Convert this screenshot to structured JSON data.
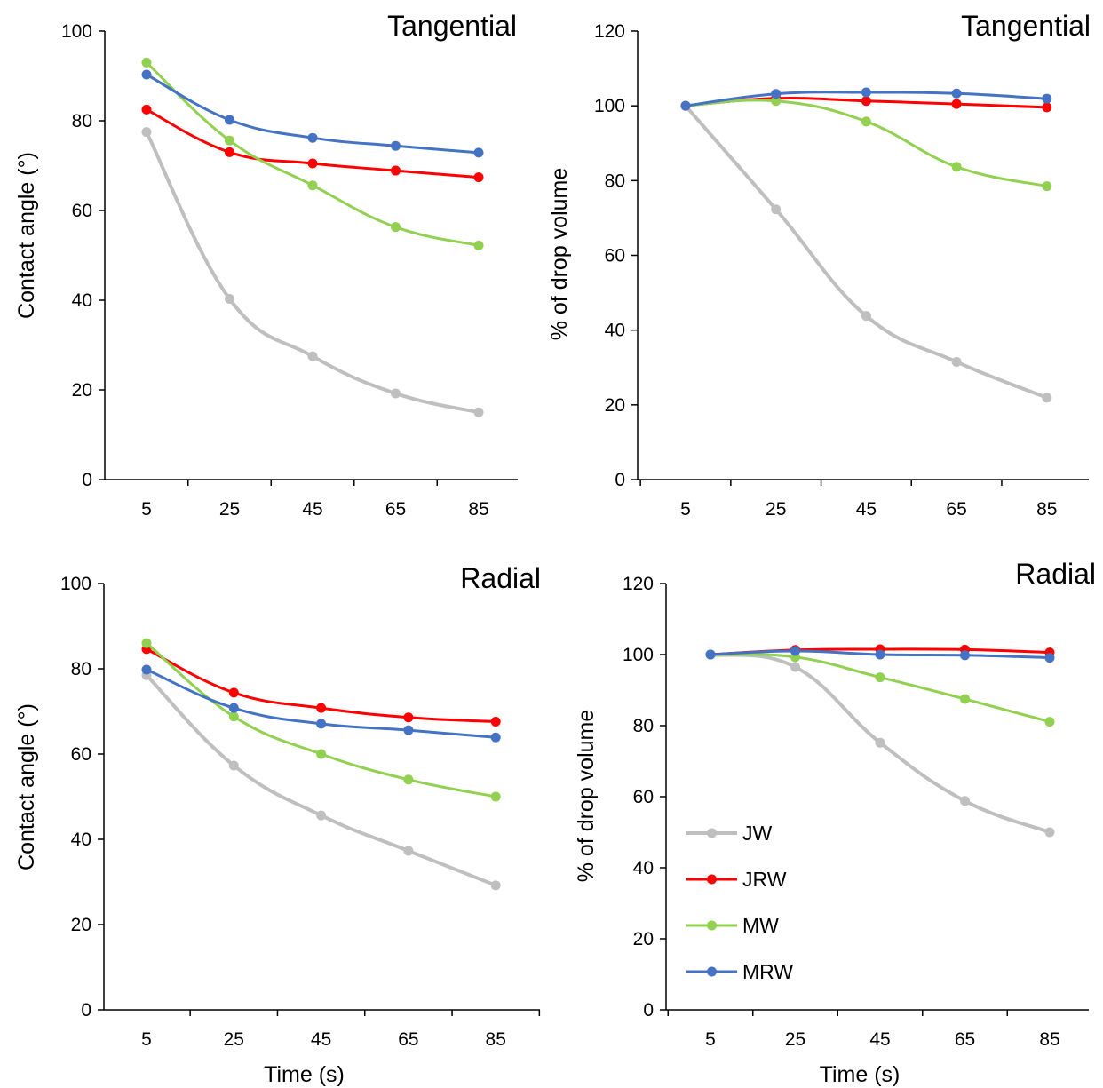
{
  "colors": {
    "JW": "#BFBFBF",
    "JRW": "#FF0000",
    "MW": "#92D050",
    "MRW": "#4472C4"
  },
  "chart_data": [
    {
      "type": "line",
      "title": "Tangential",
      "xlabel": "",
      "ylabel": "Contact angle (°)",
      "categories": [
        "5",
        "25",
        "45",
        "65",
        "85"
      ],
      "ylim": [
        0,
        100
      ],
      "yticks": [
        "0",
        "20",
        "40",
        "60",
        "80",
        "100"
      ],
      "series": [
        {
          "name": "JW",
          "values": [
            77.5,
            40.3,
            27.5,
            19.2,
            15.0
          ]
        },
        {
          "name": "JRW",
          "values": [
            82.5,
            73.0,
            70.5,
            68.9,
            67.4
          ]
        },
        {
          "name": "MW",
          "values": [
            93.0,
            75.6,
            65.6,
            56.3,
            52.2
          ]
        },
        {
          "name": "MRW",
          "values": [
            90.3,
            80.2,
            76.2,
            74.4,
            72.9
          ]
        }
      ]
    },
    {
      "type": "line",
      "title": "Tangential",
      "xlabel": "",
      "ylabel": "% of drop volume",
      "categories": [
        "5",
        "25",
        "45",
        "65",
        "85"
      ],
      "ylim": [
        0,
        120
      ],
      "yticks": [
        "0",
        "20",
        "40",
        "60",
        "80",
        "100",
        "120"
      ],
      "series": [
        {
          "name": "JW",
          "values": [
            100.0,
            72.3,
            43.8,
            31.5,
            21.9
          ]
        },
        {
          "name": "JRW",
          "values": [
            100.0,
            102.0,
            101.3,
            100.5,
            99.6
          ]
        },
        {
          "name": "MW",
          "values": [
            100.0,
            101.3,
            95.8,
            83.7,
            78.5
          ]
        },
        {
          "name": "MRW",
          "values": [
            100.0,
            103.2,
            103.6,
            103.3,
            101.9
          ]
        }
      ]
    },
    {
      "type": "line",
      "title": "Radial",
      "xlabel": "Time (s)",
      "ylabel": "Contact angle (°)",
      "categories": [
        "5",
        "25",
        "45",
        "65",
        "85"
      ],
      "ylim": [
        0,
        100
      ],
      "yticks": [
        "0",
        "20",
        "40",
        "60",
        "80",
        "100"
      ],
      "series": [
        {
          "name": "JW",
          "values": [
            78.5,
            57.3,
            45.6,
            37.3,
            29.2
          ]
        },
        {
          "name": "JRW",
          "values": [
            84.6,
            74.4,
            70.8,
            68.6,
            67.6
          ]
        },
        {
          "name": "MW",
          "values": [
            86.0,
            68.8,
            60.0,
            54.0,
            50.0
          ]
        },
        {
          "name": "MRW",
          "values": [
            79.8,
            70.8,
            67.1,
            65.6,
            63.9
          ]
        }
      ]
    },
    {
      "type": "line",
      "title": "Radial",
      "xlabel": "Time (s)",
      "ylabel": "% of drop volume",
      "categories": [
        "5",
        "25",
        "45",
        "65",
        "85"
      ],
      "ylim": [
        0,
        120
      ],
      "yticks": [
        "0",
        "20",
        "40",
        "60",
        "80",
        "100",
        "120"
      ],
      "legend": "bottom-left",
      "series": [
        {
          "name": "JW",
          "values": [
            100.0,
            96.5,
            75.2,
            58.8,
            50.0
          ]
        },
        {
          "name": "JRW",
          "values": [
            100.0,
            101.3,
            101.5,
            101.4,
            100.6
          ]
        },
        {
          "name": "MW",
          "values": [
            100.0,
            99.3,
            93.6,
            87.5,
            81.1
          ]
        },
        {
          "name": "MRW",
          "values": [
            100.0,
            101.0,
            100.0,
            99.8,
            99.1
          ]
        }
      ]
    }
  ]
}
